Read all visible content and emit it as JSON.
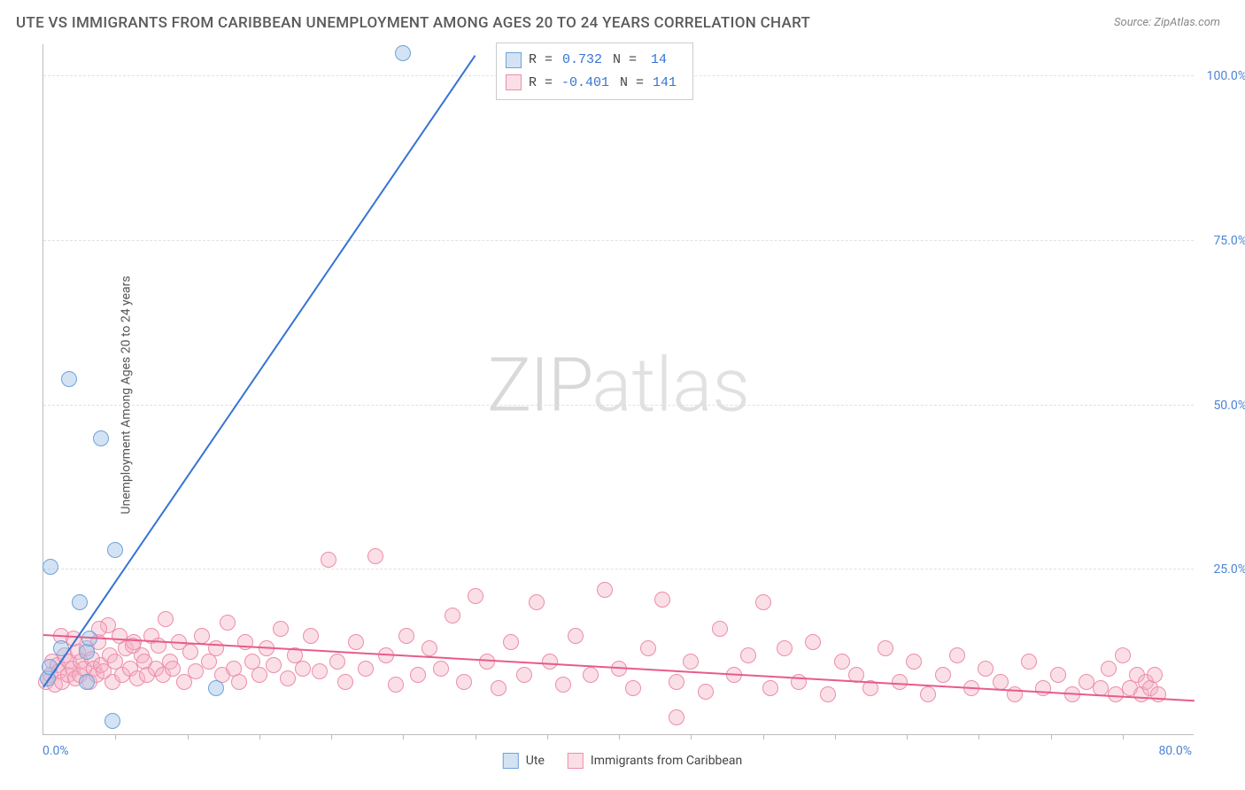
{
  "title": "UTE VS IMMIGRANTS FROM CARIBBEAN UNEMPLOYMENT AMONG AGES 20 TO 24 YEARS CORRELATION CHART",
  "source": "Source: ZipAtlas.com",
  "ylabel": "Unemployment Among Ages 20 to 24 years",
  "watermark_a": "ZIP",
  "watermark_b": "atlas",
  "chart": {
    "type": "scatter",
    "xlim": [
      0,
      80
    ],
    "ylim": [
      0,
      105
    ],
    "xtick_labels": [
      "0.0%",
      "80.0%"
    ],
    "ytick_labels": [
      "25.0%",
      "50.0%",
      "75.0%",
      "100.0%"
    ],
    "ytick_values": [
      25,
      50,
      75,
      100
    ],
    "x_minor_ticks": [
      5,
      10,
      15,
      20,
      25,
      30,
      35,
      40,
      45,
      50,
      55,
      60,
      65,
      70,
      75
    ],
    "grid_color": "#e0e0e0",
    "background_color": "#ffffff",
    "axis_color": "#bbbbbb",
    "tick_label_color": "#4d84d4"
  },
  "series": {
    "ute": {
      "label": "Ute",
      "marker_fill": "rgba(157,193,230,0.45)",
      "marker_stroke": "#6ea3da",
      "line_color": "#3574d4",
      "R": "0.732",
      "N": "14",
      "trend": {
        "x1": 0,
        "y1": 7,
        "x2": 30,
        "y2": 103
      },
      "points": [
        [
          0.3,
          8.5
        ],
        [
          0.4,
          10.2
        ],
        [
          0.5,
          25.5
        ],
        [
          1.2,
          13.0
        ],
        [
          1.8,
          54.0
        ],
        [
          2.5,
          20.0
        ],
        [
          3.0,
          8.0
        ],
        [
          3.0,
          12.5
        ],
        [
          3.2,
          14.5
        ],
        [
          4.0,
          45.0
        ],
        [
          4.8,
          2.0
        ],
        [
          5.0,
          28.0
        ],
        [
          12.0,
          7.0
        ],
        [
          25.0,
          103.5
        ]
      ]
    },
    "caribbean": {
      "label": "Immigrants from Caribbean",
      "marker_fill": "rgba(245,175,195,0.40)",
      "marker_stroke": "#ec8daa",
      "line_color": "#e85b8a",
      "R": "-0.401",
      "N": "141",
      "trend": {
        "x1": 0,
        "y1": 15,
        "x2": 80,
        "y2": 5
      },
      "points": [
        [
          0.2,
          8.0
        ],
        [
          0.5,
          9.0
        ],
        [
          0.6,
          11.0
        ],
        [
          0.8,
          7.5
        ],
        [
          1.0,
          10.5
        ],
        [
          1.1,
          9.5
        ],
        [
          1.3,
          8.0
        ],
        [
          1.5,
          12.0
        ],
        [
          1.7,
          9.0
        ],
        [
          1.8,
          11.0
        ],
        [
          2.0,
          10.0
        ],
        [
          2.2,
          8.5
        ],
        [
          2.4,
          12.5
        ],
        [
          2.5,
          9.0
        ],
        [
          2.6,
          11.0
        ],
        [
          2.8,
          10.0
        ],
        [
          3.0,
          13.0
        ],
        [
          3.2,
          8.0
        ],
        [
          3.4,
          11.5
        ],
        [
          3.5,
          10.0
        ],
        [
          3.7,
          9.0
        ],
        [
          3.8,
          14.0
        ],
        [
          4.0,
          10.5
        ],
        [
          4.2,
          9.5
        ],
        [
          4.5,
          16.5
        ],
        [
          4.6,
          12.0
        ],
        [
          4.8,
          8.0
        ],
        [
          5.0,
          11.0
        ],
        [
          5.3,
          15.0
        ],
        [
          5.5,
          9.0
        ],
        [
          5.7,
          13.0
        ],
        [
          6.0,
          10.0
        ],
        [
          6.3,
          14.0
        ],
        [
          6.5,
          8.5
        ],
        [
          6.8,
          12.0
        ],
        [
          7.0,
          11.0
        ],
        [
          7.2,
          9.0
        ],
        [
          7.5,
          15.0
        ],
        [
          7.8,
          10.0
        ],
        [
          8.0,
          13.5
        ],
        [
          8.3,
          9.0
        ],
        [
          8.5,
          17.5
        ],
        [
          8.8,
          11.0
        ],
        [
          9.0,
          10.0
        ],
        [
          9.4,
          14.0
        ],
        [
          9.8,
          8.0
        ],
        [
          10.2,
          12.5
        ],
        [
          10.6,
          9.5
        ],
        [
          11.0,
          15.0
        ],
        [
          11.5,
          11.0
        ],
        [
          12.0,
          13.0
        ],
        [
          12.4,
          9.0
        ],
        [
          12.8,
          17.0
        ],
        [
          13.2,
          10.0
        ],
        [
          13.6,
          8.0
        ],
        [
          14.0,
          14.0
        ],
        [
          14.5,
          11.0
        ],
        [
          15.0,
          9.0
        ],
        [
          15.5,
          13.0
        ],
        [
          16.0,
          10.5
        ],
        [
          16.5,
          16.0
        ],
        [
          17.0,
          8.5
        ],
        [
          17.5,
          12.0
        ],
        [
          18.0,
          10.0
        ],
        [
          18.6,
          15.0
        ],
        [
          19.2,
          9.5
        ],
        [
          19.8,
          26.5
        ],
        [
          20.4,
          11.0
        ],
        [
          21.0,
          8.0
        ],
        [
          21.7,
          14.0
        ],
        [
          22.4,
          10.0
        ],
        [
          23.1,
          27.0
        ],
        [
          23.8,
          12.0
        ],
        [
          24.5,
          7.5
        ],
        [
          25.2,
          15.0
        ],
        [
          26.0,
          9.0
        ],
        [
          26.8,
          13.0
        ],
        [
          27.6,
          10.0
        ],
        [
          28.4,
          18.0
        ],
        [
          29.2,
          8.0
        ],
        [
          30.0,
          21.0
        ],
        [
          30.8,
          11.0
        ],
        [
          31.6,
          7.0
        ],
        [
          32.5,
          14.0
        ],
        [
          33.4,
          9.0
        ],
        [
          34.3,
          20.0
        ],
        [
          35.2,
          11.0
        ],
        [
          36.1,
          7.5
        ],
        [
          37.0,
          15.0
        ],
        [
          38.0,
          9.0
        ],
        [
          39.0,
          22.0
        ],
        [
          40.0,
          10.0
        ],
        [
          41.0,
          7.0
        ],
        [
          42.0,
          13.0
        ],
        [
          43.0,
          20.5
        ],
        [
          44.0,
          8.0
        ],
        [
          45.0,
          11.0
        ],
        [
          46.0,
          6.5
        ],
        [
          47.0,
          16.0
        ],
        [
          48.0,
          9.0
        ],
        [
          49.0,
          12.0
        ],
        [
          50.0,
          20.0
        ],
        [
          50.5,
          7.0
        ],
        [
          51.5,
          13.0
        ],
        [
          52.5,
          8.0
        ],
        [
          53.5,
          14.0
        ],
        [
          54.5,
          6.0
        ],
        [
          55.5,
          11.0
        ],
        [
          56.5,
          9.0
        ],
        [
          57.5,
          7.0
        ],
        [
          58.5,
          13.0
        ],
        [
          59.5,
          8.0
        ],
        [
          60.5,
          11.0
        ],
        [
          61.5,
          6.0
        ],
        [
          62.5,
          9.0
        ],
        [
          63.5,
          12.0
        ],
        [
          64.5,
          7.0
        ],
        [
          65.5,
          10.0
        ],
        [
          66.5,
          8.0
        ],
        [
          67.5,
          6.0
        ],
        [
          68.5,
          11.0
        ],
        [
          69.5,
          7.0
        ],
        [
          70.5,
          9.0
        ],
        [
          71.5,
          6.0
        ],
        [
          72.5,
          8.0
        ],
        [
          73.5,
          7.0
        ],
        [
          74.0,
          10.0
        ],
        [
          74.5,
          6.0
        ],
        [
          75.0,
          12.0
        ],
        [
          75.5,
          7.0
        ],
        [
          76.0,
          9.0
        ],
        [
          76.3,
          6.0
        ],
        [
          76.6,
          8.0
        ],
        [
          76.9,
          7.0
        ],
        [
          77.2,
          9.0
        ],
        [
          77.5,
          6.0
        ],
        [
          44.0,
          2.5
        ],
        [
          1.2,
          15.0
        ],
        [
          2.1,
          14.5
        ],
        [
          3.9,
          16.0
        ],
        [
          6.2,
          13.5
        ]
      ]
    }
  }
}
